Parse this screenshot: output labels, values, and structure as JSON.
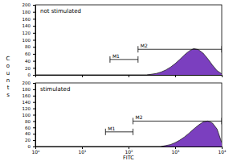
{
  "chart_data": [
    {
      "type": "area",
      "annotation": "not stimulated",
      "y_label": "Counts",
      "x": [
        251,
        316,
        398,
        501,
        631,
        794,
        1000,
        1259,
        1585,
        1995,
        2512,
        3162,
        3981,
        5012,
        6310,
        7943,
        10000
      ],
      "values": [
        0,
        2,
        4,
        8,
        14,
        22,
        32,
        44,
        57,
        68,
        75,
        72,
        62,
        46,
        28,
        12,
        3
      ],
      "color": "#7b3fbf",
      "log": "x",
      "xlim": [
        1,
        10000
      ],
      "xticks": [
        1,
        10,
        100,
        1000,
        10000
      ],
      "ylim": [
        0,
        200
      ],
      "yticks": [
        0,
        20,
        40,
        60,
        80,
        100,
        120,
        140,
        160,
        180,
        200
      ],
      "tick_labels": "y",
      "gates": [
        {
          "label": "M1",
          "x": [
            40,
            160
          ],
          "y": 44
        },
        {
          "label": "M2",
          "x": [
            160,
            10000
          ],
          "y": 73
        }
      ]
    },
    {
      "type": "area",
      "annotation": "stimulated",
      "x_label": "FITC",
      "x": [
        501,
        631,
        794,
        1000,
        1259,
        1585,
        1995,
        2512,
        3162,
        3981,
        5012,
        6310,
        7943,
        10000
      ],
      "values": [
        0,
        3,
        6,
        12,
        20,
        30,
        42,
        55,
        67,
        77,
        80,
        74,
        55,
        12
      ],
      "color": "#7b3fbf",
      "log": "x",
      "xlim": [
        1,
        10000
      ],
      "xticks": [
        {
          "value": 1,
          "label": "10⁰"
        },
        {
          "value": 10,
          "label": "10¹"
        },
        {
          "value": 100,
          "label": "10²"
        },
        {
          "value": 1000,
          "label": "10³"
        },
        {
          "value": 10000,
          "label": "10⁴"
        }
      ],
      "ylim": [
        0,
        200
      ],
      "yticks": [
        0,
        20,
        40,
        60,
        80,
        100,
        120,
        140,
        160,
        180,
        200
      ],
      "gates": [
        {
          "label": "M1",
          "x": [
            32,
            125
          ],
          "y": 46
        },
        {
          "label": "M2",
          "x": [
            125,
            10000
          ],
          "y": 80
        }
      ]
    }
  ]
}
